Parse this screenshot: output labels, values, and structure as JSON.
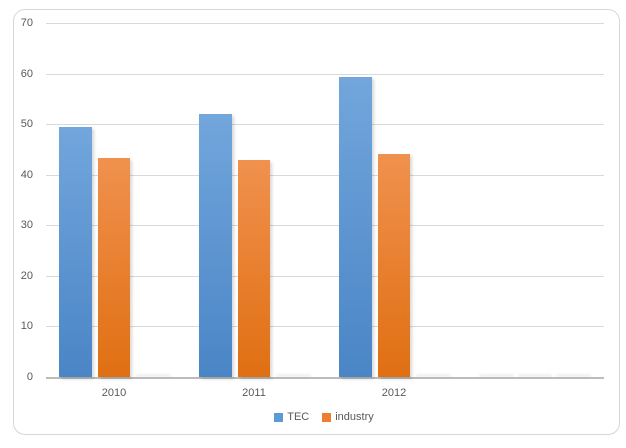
{
  "chart_data": {
    "type": "bar",
    "categories": [
      "2010",
      "2011",
      "2012"
    ],
    "series": [
      {
        "name": "TEC",
        "values": [
          49.4,
          52,
          59.3
        ],
        "color": "#5b9bd5",
        "gradient_top": "#72a6dc",
        "gradient_bottom": "#4a85c6"
      },
      {
        "name": "industry",
        "values": [
          43.3,
          43,
          44
        ],
        "color": "#ed7d31",
        "gradient_top": "#f0914e",
        "gradient_bottom": "#e06f12"
      }
    ],
    "title": "",
    "xlabel": "",
    "ylabel": "",
    "ylim": [
      0,
      70
    ],
    "yticks": [
      0,
      10,
      20,
      30,
      40,
      50,
      60,
      70
    ],
    "grid": true,
    "legend_position": "bottom",
    "layout_hints": {
      "empty_third_series_slot": true,
      "empty_fourth_category_slot": true
    }
  },
  "colors": {
    "grid": "#d9d9d9",
    "axis": "#bcbcbc",
    "text": "#595959",
    "card_border": "#d7d7d7",
    "background": "#ffffff"
  }
}
